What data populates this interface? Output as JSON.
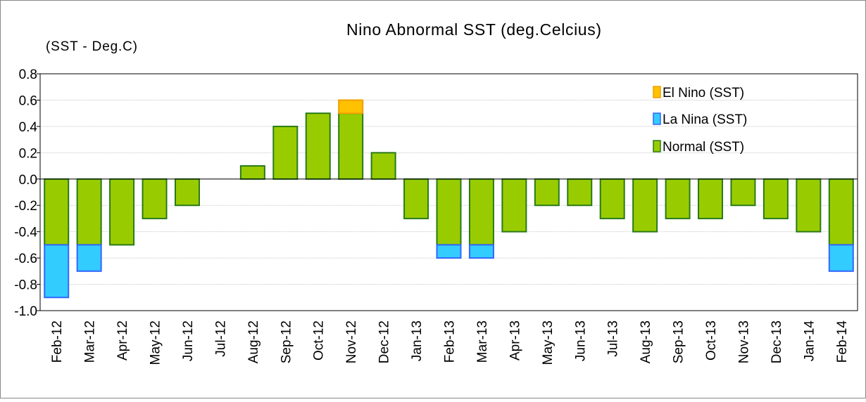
{
  "chart_data": {
    "type": "bar",
    "stacked": true,
    "title": "Nino Abnormal SST (deg.Celcius)",
    "y_label": "(SST - Deg.C)",
    "categories": [
      "Feb-12",
      "Mar-12",
      "Apr-12",
      "May-12",
      "Jun-12",
      "Jul-12",
      "Aug-12",
      "Sep-12",
      "Oct-12",
      "Nov-12",
      "Dec-12",
      "Jan-13",
      "Feb-13",
      "Mar-13",
      "Apr-13",
      "May-13",
      "Jun-13",
      "Jul-13",
      "Aug-13",
      "Sep-13",
      "Oct-13",
      "Nov-13",
      "Dec-13",
      "Jan-14",
      "Feb-14"
    ],
    "series": [
      {
        "name": "El Nino (SST)",
        "color": "#ffc000",
        "stroke": "#f0a000",
        "values": [
          0,
          0,
          0,
          0,
          0,
          0,
          0,
          0,
          0,
          0.1,
          0,
          0,
          0,
          0,
          0,
          0,
          0,
          0,
          0,
          0,
          0,
          0,
          0,
          0,
          0
        ]
      },
      {
        "name": "La Nina (SST)",
        "color": "#33ccff",
        "stroke": "#3366ff",
        "values": [
          -0.4,
          -0.2,
          0,
          0,
          0,
          0,
          0,
          0,
          0,
          0,
          0,
          0,
          -0.1,
          -0.1,
          0,
          0,
          0,
          0,
          0,
          0,
          0,
          0,
          0,
          0,
          -0.2
        ]
      },
      {
        "name": "Normal (SST)",
        "color": "#99cc00",
        "stroke": "#2a7a1a",
        "values": [
          -0.5,
          -0.5,
          -0.5,
          -0.3,
          -0.2,
          0,
          0.1,
          0.4,
          0.5,
          0.5,
          0.2,
          -0.3,
          -0.5,
          -0.5,
          -0.4,
          -0.2,
          -0.2,
          -0.3,
          -0.4,
          -0.3,
          -0.3,
          -0.2,
          -0.3,
          -0.4,
          -0.5
        ]
      }
    ],
    "stack_order": [
      2,
      1,
      0
    ],
    "ylim": [
      -1,
      0.8
    ],
    "yticks": [
      0.8,
      0.6,
      0.4,
      0.2,
      {
        "value": 0,
        "label": "0.0"
      },
      -0.2,
      -0.4,
      -0.6,
      -0.8,
      {
        "value": -1,
        "label": "-1.0"
      }
    ],
    "grid": true,
    "legend": "top-right"
  }
}
